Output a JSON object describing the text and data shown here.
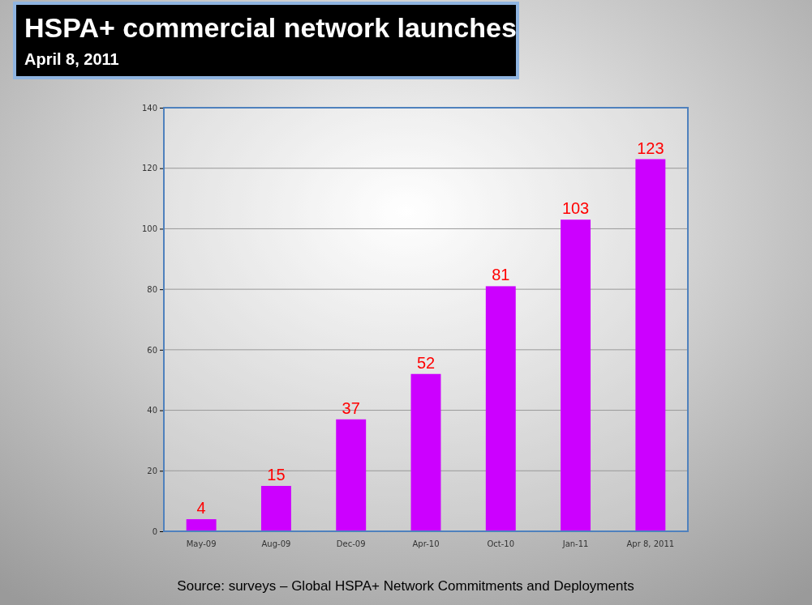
{
  "chart_data": {
    "type": "bar",
    "title": "HSPA+ commercial network launches",
    "subtitle": "April 8, 2011",
    "categories": [
      "May-09",
      "Aug-09",
      "Dec-09",
      "Apr-10",
      "Oct-10",
      "Jan-11",
      "Apr 8, 2011"
    ],
    "values": [
      4,
      15,
      37,
      52,
      81,
      103,
      123
    ],
    "color": "#cc00ff",
    "ylim": [
      0,
      140
    ],
    "yticks": [
      0,
      20,
      40,
      60,
      80,
      100,
      120,
      140
    ],
    "grid": "y",
    "data_labels": true,
    "annotations": [
      "Source: surveys – Global HSPA+ Network Commitments and Deployments"
    ]
  }
}
